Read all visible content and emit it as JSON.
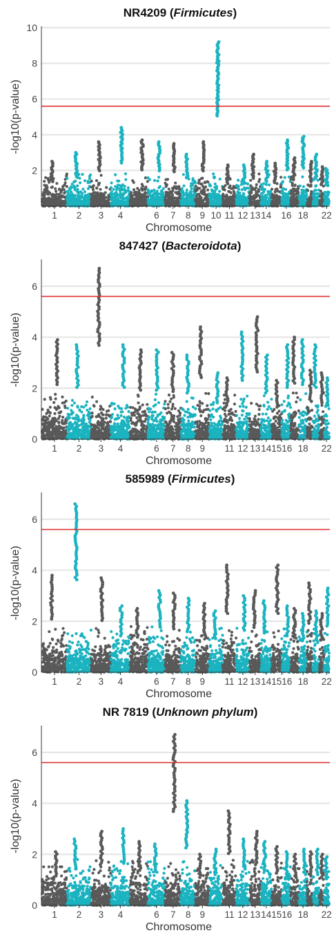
{
  "colors": {
    "odd": "#595959",
    "even": "#1bb3c0",
    "threshold": "#e03030",
    "grid": "#e6e6e6",
    "axis": "#333333"
  },
  "chart_data": [
    {
      "type": "scatter",
      "subtype": "manhattan",
      "title_id": "NR4209",
      "title_taxon": "Firmicutes",
      "xlabel": "Chromosome",
      "ylabel": "-log10(p-value)",
      "ylim": [
        0,
        10
      ],
      "yticks": [
        2,
        4,
        6,
        8,
        10
      ],
      "threshold": 5.6,
      "grid": true,
      "chromosomes": [
        "1",
        "2",
        "3",
        "4",
        "5",
        "6",
        "7",
        "8",
        "9",
        "10",
        "11",
        "12",
        "13",
        "14",
        "15",
        "16",
        "17",
        "18",
        "19",
        "20",
        "21",
        "22"
      ],
      "xtick_labels": [
        "1",
        "2",
        "3",
        "4",
        "6",
        "7",
        "8",
        "9",
        "10",
        "11",
        "12",
        "13",
        "14",
        "16",
        "18",
        "22"
      ],
      "xtick_chromosomes": [
        1,
        2,
        3,
        4,
        6,
        7,
        8,
        9,
        10,
        11,
        12,
        13,
        14,
        16,
        18,
        22
      ],
      "peak_max": [
        2.5,
        3.0,
        3.6,
        4.4,
        3.7,
        3.6,
        3.5,
        2.9,
        3.6,
        9.2,
        2.3,
        2.3,
        2.9,
        2.5,
        2.4,
        3.7,
        2.7,
        3.9,
        2.5,
        2.9,
        2.2,
        2.1
      ]
    },
    {
      "type": "scatter",
      "subtype": "manhattan",
      "title_id": "847427",
      "title_taxon": "Bacteroidota",
      "xlabel": "Chromosome",
      "ylabel": "-log10(p-value)",
      "ylim": [
        0,
        7
      ],
      "yticks": [
        0,
        2,
        4,
        6
      ],
      "threshold": 5.6,
      "grid": true,
      "chromosomes": [
        "1",
        "2",
        "3",
        "4",
        "5",
        "6",
        "7",
        "8",
        "9",
        "10",
        "11",
        "12",
        "13",
        "14",
        "15",
        "16",
        "17",
        "18",
        "19",
        "20",
        "21",
        "22"
      ],
      "xtick_labels": [
        "1",
        "2",
        "3",
        "4",
        "6",
        "7",
        "8",
        "9",
        "11",
        "12",
        "13",
        "14",
        "1516",
        "18",
        "22"
      ],
      "xtick_chromosomes": [
        1,
        2,
        3,
        4,
        6,
        7,
        8,
        9,
        11,
        12,
        13,
        14,
        15.5,
        18,
        22
      ],
      "peak_max": [
        3.9,
        3.7,
        6.7,
        3.7,
        3.5,
        3.5,
        3.4,
        3.3,
        4.4,
        2.6,
        2.4,
        4.2,
        4.8,
        3.3,
        2.3,
        3.7,
        4.0,
        3.9,
        2.7,
        3.7,
        2.6,
        2.4
      ]
    },
    {
      "type": "scatter",
      "subtype": "manhattan",
      "title_id": "585989",
      "title_taxon": "Firmicutes",
      "xlabel": "Chromosome",
      "ylabel": "-log10(p-value)",
      "ylim": [
        0,
        7
      ],
      "yticks": [
        0,
        2,
        4,
        6
      ],
      "threshold": 5.6,
      "grid": true,
      "chromosomes": [
        "1",
        "2",
        "3",
        "4",
        "5",
        "6",
        "7",
        "8",
        "9",
        "10",
        "11",
        "12",
        "13",
        "14",
        "15",
        "16",
        "17",
        "18",
        "19",
        "20",
        "21",
        "22"
      ],
      "xtick_labels": [
        "1",
        "2",
        "3",
        "4",
        "6",
        "7",
        "8",
        "9",
        "11",
        "12",
        "13",
        "14",
        "1516",
        "18",
        "22"
      ],
      "xtick_chromosomes": [
        1,
        2,
        3,
        4,
        6,
        7,
        8,
        9,
        11,
        12,
        13,
        14,
        15.5,
        18,
        22
      ],
      "peak_max": [
        3.8,
        6.6,
        3.7,
        2.6,
        2.5,
        3.2,
        3.1,
        2.9,
        2.7,
        2.4,
        4.2,
        3.0,
        3.2,
        2.8,
        4.2,
        2.6,
        2.5,
        2.3,
        3.5,
        2.4,
        2.3,
        3.3
      ]
    },
    {
      "type": "scatter",
      "subtype": "manhattan",
      "title_id": "NR 7819",
      "title_taxon": "Unknown phylum",
      "xlabel": "Chromosome",
      "ylabel": "-log10(p-value)",
      "ylim": [
        0,
        7
      ],
      "yticks": [
        0,
        2,
        4,
        6
      ],
      "threshold": 5.6,
      "grid": true,
      "chromosomes": [
        "1",
        "2",
        "3",
        "4",
        "5",
        "6",
        "7",
        "8",
        "9",
        "10",
        "11",
        "12",
        "13",
        "14",
        "15",
        "16",
        "17",
        "18",
        "19",
        "20",
        "21",
        "22"
      ],
      "xtick_labels": [
        "1",
        "2",
        "3",
        "4",
        "6",
        "7",
        "8",
        "9",
        "11",
        "12",
        "13",
        "14",
        "1516",
        "18",
        "22"
      ],
      "xtick_chromosomes": [
        1,
        2,
        3,
        4,
        6,
        7,
        8,
        9,
        11,
        12,
        13,
        14,
        15.5,
        18,
        22
      ],
      "peak_max": [
        2.1,
        2.6,
        2.9,
        3.0,
        2.5,
        2.4,
        6.7,
        4.1,
        2.0,
        2.2,
        3.7,
        2.6,
        2.9,
        2.5,
        2.3,
        2.1,
        2.0,
        2.2,
        2.1,
        2.2,
        2.0,
        1.9
      ]
    }
  ]
}
